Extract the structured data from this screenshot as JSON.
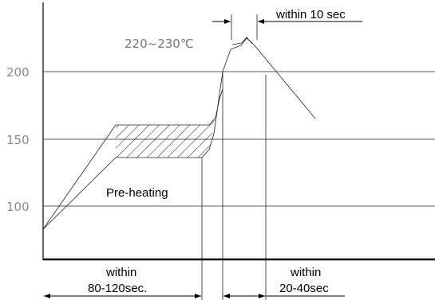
{
  "y_ticks": [
    {
      "label": "200",
      "value": 200
    },
    {
      "label": "150",
      "value": 150
    },
    {
      "label": "100",
      "value": 100
    }
  ],
  "peak_label": "220~230℃",
  "peak_time_label": "within 10 sec",
  "preheat_label": "Pre-heating",
  "preheat_time": {
    "line1": "within",
    "line2": "80-120sec."
  },
  "reflow_time": {
    "line1": "within",
    "line2": "20-40sec"
  }
}
